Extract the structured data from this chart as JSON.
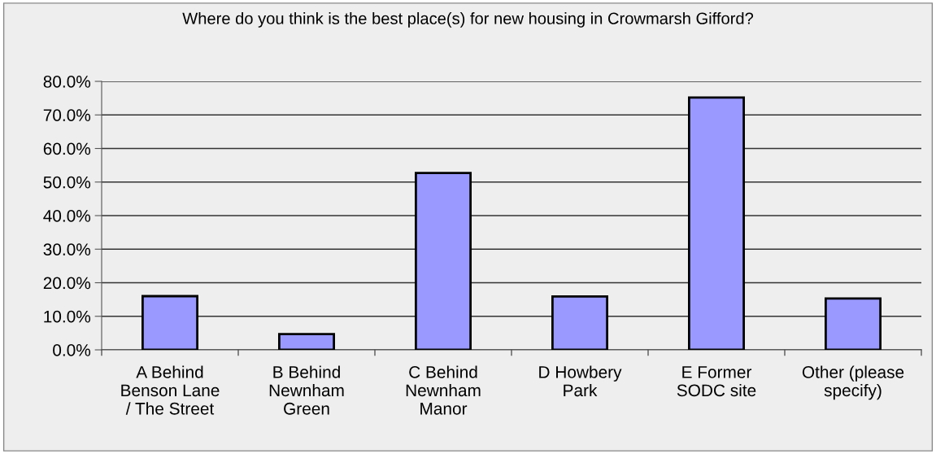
{
  "chart_data": {
    "type": "bar",
    "title": "Where do you think is the best place(s) for new housing in Crowmarsh Gifford?",
    "categories": [
      "A Behind\nBenson Lane\n/ The Street",
      "B Behind\nNewnham\nGreen",
      "C Behind\nNewnham\nManor",
      "D Howbery\nPark",
      "E Former\nSODC site",
      "Other (please\nspecify)"
    ],
    "values": [
      16.0,
      4.7,
      52.7,
      15.9,
      75.2,
      15.3
    ],
    "color": "#9999ff",
    "ylim": [
      0,
      80
    ],
    "yticks": [
      {
        "value": 0,
        "label": "0.0%"
      },
      {
        "value": 10,
        "label": "10.0%"
      },
      {
        "value": 20,
        "label": "20.0%"
      },
      {
        "value": 30,
        "label": "30.0%"
      },
      {
        "value": 40,
        "label": "40.0%"
      },
      {
        "value": 50,
        "label": "50.0%"
      },
      {
        "value": 60,
        "label": "60.0%"
      },
      {
        "value": 70,
        "label": "70.0%"
      },
      {
        "value": 80,
        "label": "80.0%"
      }
    ],
    "grid": "y",
    "legend": false
  }
}
